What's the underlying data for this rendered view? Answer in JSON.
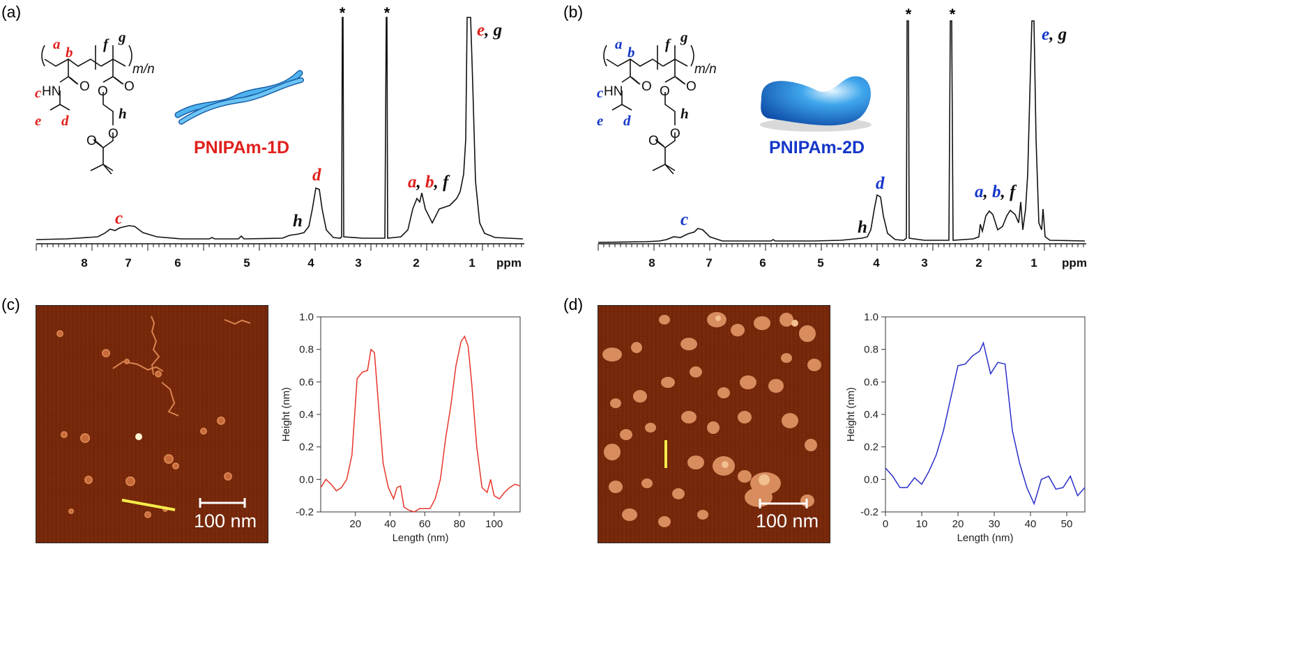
{
  "panels": {
    "a": {
      "label": "(a)",
      "polymer_name": "PNIPAm-1D",
      "accent": "#e0211d"
    },
    "b": {
      "label": "(b)",
      "polymer_name": "PNIPAm-2D",
      "accent": "#1537c8"
    },
    "c": {
      "label": "(c)",
      "scale_bar": "100 nm"
    },
    "d": {
      "label": "(d)",
      "scale_bar": "100 nm"
    }
  },
  "peak_labels": {
    "a": "a",
    "b": "b",
    "c": "c",
    "d": "d",
    "e": "e",
    "f": "f",
    "g": "g",
    "h": "h",
    "comma": ",",
    "star": "*"
  },
  "structure": {
    "subscript": "m/n",
    "hn": "HN",
    "o": "O"
  },
  "nmr_axis": {
    "ticks": [
      "8",
      "7",
      "6",
      "5",
      "4",
      "3",
      "2",
      "1"
    ],
    "unit": "ppm"
  },
  "chart_data": [
    {
      "type": "line",
      "panel": "c",
      "xlabel": "Length (nm)",
      "ylabel": "Height (nm)",
      "xlim": [
        0,
        115
      ],
      "ylim": [
        -0.2,
        1.0
      ],
      "xticks": [
        "20",
        "40",
        "60",
        "80",
        "100"
      ],
      "yticks": [
        "-0.2",
        "0.0",
        "0.2",
        "0.4",
        "0.6",
        "0.8",
        "1.0"
      ],
      "color": "#e8342a",
      "x": [
        0,
        3,
        6,
        9,
        12,
        15,
        18,
        21,
        24,
        27,
        29,
        31,
        33,
        36,
        39,
        42,
        44,
        46,
        48,
        51,
        54,
        57,
        60,
        63,
        66,
        69,
        72,
        75,
        78,
        81,
        83,
        85,
        87,
        90,
        93,
        96,
        98,
        100,
        103,
        106,
        109,
        112,
        115
      ],
      "y": [
        -0.05,
        0.0,
        -0.03,
        -0.07,
        -0.05,
        0.0,
        0.15,
        0.62,
        0.66,
        0.67,
        0.8,
        0.78,
        0.5,
        0.1,
        -0.05,
        -0.12,
        -0.05,
        -0.04,
        -0.17,
        -0.19,
        -0.2,
        -0.18,
        -0.18,
        -0.18,
        -0.12,
        0.0,
        0.25,
        0.45,
        0.7,
        0.85,
        0.88,
        0.82,
        0.6,
        0.2,
        -0.05,
        -0.08,
        0.0,
        -0.1,
        -0.12,
        -0.08,
        -0.05,
        -0.03,
        -0.04
      ]
    },
    {
      "type": "line",
      "panel": "d",
      "xlabel": "Length (nm)",
      "ylabel": "Height (nm)",
      "xlim": [
        0,
        55
      ],
      "ylim": [
        -0.2,
        1.0
      ],
      "xticks": [
        "0",
        "10",
        "20",
        "30",
        "40",
        "50"
      ],
      "yticks": [
        "-0.2",
        "0.0",
        "0.2",
        "0.4",
        "0.6",
        "0.8",
        "1.0"
      ],
      "color": "#2a2ec8",
      "x": [
        0,
        2,
        4,
        6,
        8,
        10,
        12,
        14,
        16,
        18,
        20,
        22,
        24,
        26,
        27,
        29,
        31,
        33,
        35,
        37,
        39,
        41,
        43,
        45,
        47,
        49,
        51,
        53,
        55
      ],
      "y": [
        0.07,
        0.02,
        -0.05,
        -0.05,
        0.01,
        -0.03,
        0.05,
        0.15,
        0.3,
        0.5,
        0.7,
        0.71,
        0.76,
        0.79,
        0.84,
        0.65,
        0.72,
        0.71,
        0.3,
        0.1,
        -0.05,
        -0.15,
        0.0,
        0.02,
        -0.06,
        -0.05,
        0.02,
        -0.1,
        -0.05
      ]
    }
  ]
}
